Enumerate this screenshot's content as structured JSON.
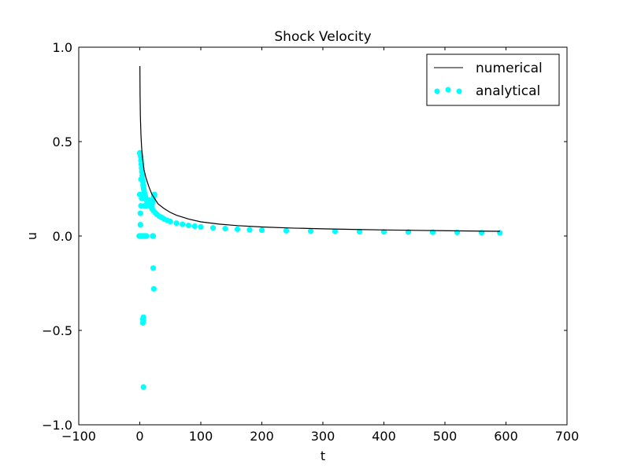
{
  "chart_data": {
    "type": "line",
    "title": "Shock Velocity",
    "xlabel": "t",
    "ylabel": "u",
    "xlim": [
      -100,
      700
    ],
    "ylim": [
      -1.0,
      1.0
    ],
    "xticks": [
      "−100",
      "0",
      "100",
      "200",
      "300",
      "400",
      "500",
      "600",
      "700"
    ],
    "xtick_values": [
      -100,
      0,
      100,
      200,
      300,
      400,
      500,
      600,
      700
    ],
    "yticks": [
      "−1.0",
      "−0.5",
      "0.0",
      "0.5",
      "1.0"
    ],
    "ytick_values": [
      -1.0,
      -0.5,
      0.0,
      0.5,
      1.0
    ],
    "grid": false,
    "legend": {
      "position": "top-right"
    },
    "series": [
      {
        "name": "numerical",
        "kind": "line",
        "color": "#000000",
        "x": [
          0.2,
          0.5,
          1,
          2,
          3,
          4,
          5,
          7,
          10,
          15,
          20,
          30,
          40,
          50,
          60,
          80,
          100,
          130,
          160,
          200,
          250,
          300,
          350,
          400,
          450,
          500,
          550,
          590
        ],
        "y": [
          0.9,
          0.74,
          0.63,
          0.53,
          0.47,
          0.43,
          0.4,
          0.35,
          0.31,
          0.26,
          0.22,
          0.17,
          0.145,
          0.125,
          0.11,
          0.09,
          0.075,
          0.063,
          0.055,
          0.048,
          0.042,
          0.038,
          0.035,
          0.032,
          0.03,
          0.028,
          0.026,
          0.025
        ]
      },
      {
        "name": "analytical",
        "kind": "scatter",
        "color": "#00ffff",
        "x": [
          0,
          0.5,
          1,
          1.5,
          2,
          2.5,
          3,
          3.5,
          4,
          4.5,
          5,
          5.5,
          6,
          6.5,
          7,
          7.5,
          8,
          9,
          10,
          12,
          14,
          16,
          18,
          20,
          22,
          25,
          28,
          32,
          36,
          40,
          45,
          50,
          60,
          70,
          80,
          90,
          100,
          120,
          140,
          160,
          180,
          200,
          240,
          280,
          320,
          360,
          400,
          440,
          480,
          520,
          560,
          590,
          -1,
          0,
          1,
          2,
          3,
          4,
          5,
          6,
          7,
          8,
          9,
          10,
          11,
          0,
          1,
          1,
          2,
          2,
          3,
          5,
          5,
          6,
          6,
          6,
          7,
          8,
          10,
          12,
          14,
          16,
          18,
          20,
          21,
          22,
          22,
          23,
          23,
          24,
          22,
          21
        ],
        "y": [
          0.44,
          0.44,
          0.43,
          0.42,
          0.4,
          0.38,
          0.36,
          0.34,
          0.32,
          0.3,
          0.29,
          0.27,
          0.26,
          0.25,
          0.24,
          0.23,
          0.22,
          0.21,
          0.2,
          0.185,
          0.175,
          0.165,
          0.155,
          0.145,
          0.135,
          0.125,
          0.115,
          0.105,
          0.098,
          0.09,
          0.083,
          0.077,
          0.068,
          0.062,
          0.056,
          0.052,
          0.048,
          0.043,
          0.039,
          0.036,
          0.033,
          0.031,
          0.028,
          0.026,
          0.024,
          0.023,
          0.022,
          0.021,
          0.02,
          0.019,
          0.018,
          0.017,
          0.0,
          0.0,
          0.0,
          0.0,
          0.0,
          0.0,
          0.0,
          0.0,
          0.0,
          0.0,
          0.0,
          0.0,
          0.0,
          0.22,
          0.12,
          0.06,
          0.3,
          0.16,
          0.2,
          -0.44,
          -0.46,
          -0.43,
          -0.45,
          -0.8,
          0.2,
          0.16,
          0.16,
          0.18,
          0.18,
          0.19,
          0.17,
          0.16,
          0.0,
          0.0,
          -0.17,
          -0.28,
          0.21,
          0.22,
          0.19,
          0.18
        ]
      }
    ]
  }
}
